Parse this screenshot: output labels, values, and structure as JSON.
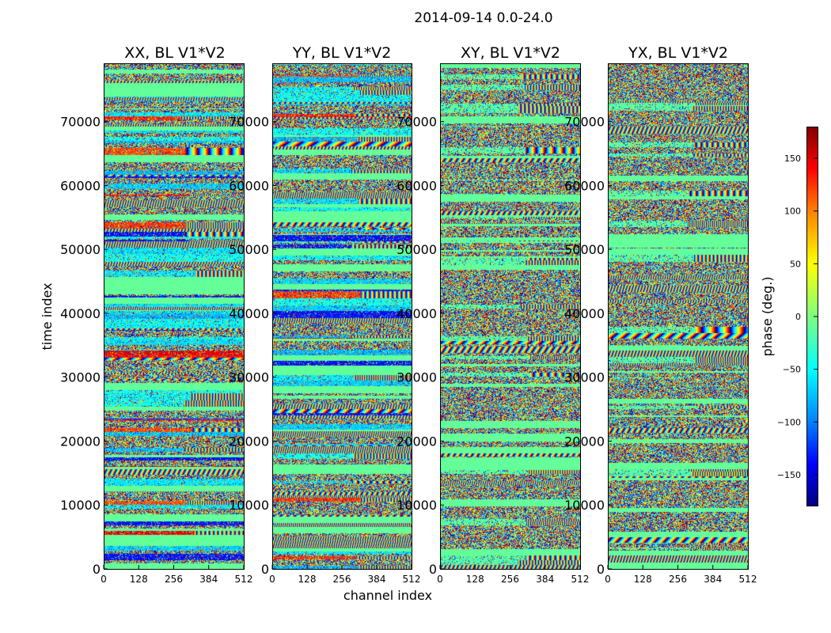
{
  "chart_data": {
    "type": "heatmap",
    "suptitle": "2014-09-14 0.0-24.0",
    "xlabel": "channel index",
    "ylabel": "time index",
    "xlim": [
      0,
      512
    ],
    "ylim": [
      0,
      79000
    ],
    "x_ticks": [
      0,
      128,
      256,
      384,
      512
    ],
    "y_ticks": [
      0,
      10000,
      20000,
      30000,
      40000,
      50000,
      60000,
      70000
    ],
    "x_tick_labels": [
      "0",
      "128",
      "256",
      "384",
      "512"
    ],
    "y_tick_labels": [
      "0",
      "10000",
      "20000",
      "30000",
      "40000",
      "50000",
      "60000",
      "70000"
    ],
    "colormap": "jet",
    "colors": [
      "#00007f",
      "#0000ff",
      "#007fff",
      "#00ffff",
      "#7fff7f",
      "#ffff00",
      "#ff7f00",
      "#ff0000",
      "#7f0000"
    ],
    "panels": [
      {
        "title": "XX, BL V1*V2",
        "polarization": "XX"
      },
      {
        "title": "YY, BL V1*V2",
        "polarization": "YY"
      },
      {
        "title": "XY, BL V1*V2",
        "polarization": "XY"
      },
      {
        "title": "YX, BL V1*V2",
        "polarization": "YX"
      }
    ],
    "colorbar": {
      "label": "phase (deg.)",
      "range": [
        -180,
        180
      ],
      "ticks": [
        -150,
        -100,
        -50,
        0,
        50,
        100,
        150
      ],
      "tick_labels": [
        "−150",
        "−100",
        "−50",
        "0",
        "50",
        "100",
        "150"
      ]
    },
    "description_values": "phase in degrees, range -180 to 180, noisy per time/channel"
  }
}
